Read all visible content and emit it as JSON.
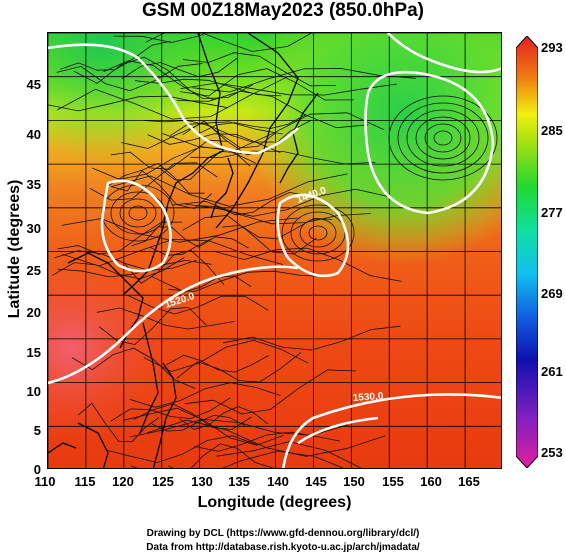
{
  "title": "GSM 00Z18May2023 (850.0hPa)",
  "x_axis": {
    "label": "Longitude (degrees)",
    "ticks": [
      "110",
      "115",
      "120",
      "125",
      "130",
      "135",
      "140",
      "145",
      "150",
      "155",
      "160",
      "165"
    ],
    "range": [
      110,
      170
    ]
  },
  "y_axis": {
    "label": "Latitude  (degrees)",
    "ticks": [
      "0",
      "5",
      "10",
      "15",
      "20",
      "25",
      "30",
      "35",
      "40",
      "45"
    ],
    "range": [
      0,
      50
    ]
  },
  "colorbar": {
    "labels": [
      "293",
      "285",
      "277",
      "269",
      "261",
      "253"
    ],
    "range": [
      253,
      293
    ],
    "colors": [
      "#e02090",
      "#1010c0",
      "#10c0f0",
      "#20e060",
      "#f0f010",
      "#f05010",
      "#e02020"
    ]
  },
  "contour_labels": [
    "1440.0",
    "1520.0",
    "1530.0"
  ],
  "credits": {
    "line1": "Drawing by DCL (https://www.gfd-dennou.org/library/dcl/)",
    "line2": "Data from http://database.rish.kyoto-u.ac.jp/arch/jmadata/"
  }
}
